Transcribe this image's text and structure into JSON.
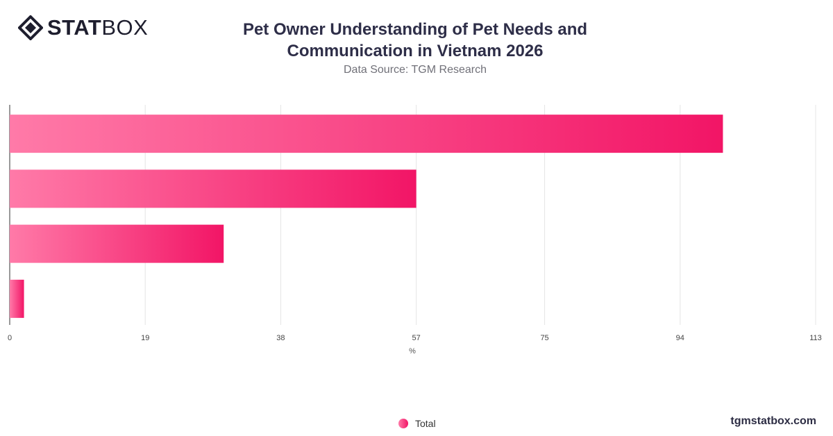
{
  "brand": {
    "logo_bold": "STAT",
    "logo_light": "BOX",
    "footer": "tgmstatbox.com"
  },
  "chart_data": {
    "type": "bar",
    "orientation": "horizontal",
    "title": "Pet Owner Understanding of Pet Needs and Communication in Vietnam 2026",
    "subtitle": "Data Source: TGM Research",
    "xlabel": "%",
    "ylabel": "",
    "xlim": [
      0,
      113
    ],
    "x_ticks": [
      0,
      19,
      38,
      57,
      75,
      94,
      113
    ],
    "grid": "vertical",
    "categories": [
      "",
      "",
      "",
      ""
    ],
    "series": [
      {
        "name": "Total",
        "values": [
          100,
          57,
          30,
          2
        ]
      }
    ],
    "legend": {
      "position": "bottom-center"
    },
    "colors": {
      "bar_start": "#ff7aa8",
      "bar_end": "#f21566",
      "grid": "#e4e4e4",
      "axis": "#333333"
    }
  }
}
